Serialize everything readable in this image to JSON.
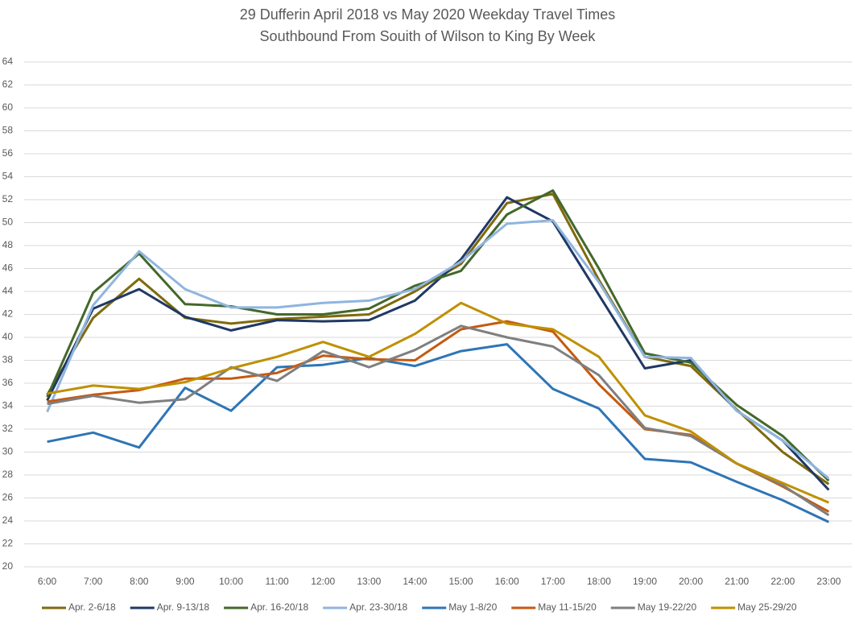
{
  "chart_data": {
    "type": "line",
    "title": "29 Dufferin April 2018 vs May 2020 Weekday Travel Times",
    "subtitle": "Southbound From Souith of Wilson to King By Week",
    "categories": [
      "6:00",
      "7:00",
      "8:00",
      "9:00",
      "10:00",
      "11:00",
      "12:00",
      "13:00",
      "14:00",
      "15:00",
      "16:00",
      "17:00",
      "18:00",
      "19:00",
      "20:00",
      "21:00",
      "22:00",
      "23:00"
    ],
    "ylim": [
      20,
      64
    ],
    "yticks": [
      20,
      22,
      24,
      26,
      28,
      30,
      32,
      34,
      36,
      38,
      40,
      42,
      44,
      46,
      48,
      50,
      52,
      54,
      56,
      58,
      60,
      62,
      64
    ],
    "grid": true,
    "legend": "bottom",
    "series": [
      {
        "name": "Apr. 2-6/18",
        "color": "#7f6a0c",
        "values": [
          35.0,
          41.7,
          45.1,
          41.7,
          41.2,
          41.6,
          41.8,
          42.0,
          44.0,
          46.4,
          51.7,
          52.5,
          45.0,
          38.3,
          37.5,
          33.7,
          30.0,
          27.2
        ]
      },
      {
        "name": "Apr. 9-13/18",
        "color": "#203864",
        "values": [
          34.5,
          42.5,
          44.2,
          41.8,
          40.6,
          41.5,
          41.4,
          41.5,
          43.2,
          46.8,
          52.2,
          50.1,
          43.7,
          37.3,
          38.0,
          33.6,
          31.0,
          26.7
        ]
      },
      {
        "name": "Apr. 16-20/18",
        "color": "#43682b",
        "values": [
          34.8,
          43.9,
          47.3,
          42.9,
          42.7,
          42.0,
          42.0,
          42.5,
          44.5,
          45.8,
          50.7,
          52.8,
          46.0,
          38.6,
          37.8,
          34.1,
          31.4,
          27.5
        ]
      },
      {
        "name": "Apr. 23-30/18",
        "color": "#8fb5e0",
        "values": [
          33.5,
          42.8,
          47.5,
          44.2,
          42.6,
          42.6,
          43.0,
          43.2,
          44.2,
          46.6,
          49.9,
          50.2,
          44.8,
          38.3,
          38.2,
          33.6,
          31.0,
          27.7
        ]
      },
      {
        "name": "May 1-8/20",
        "color": "#2e75b6",
        "values": [
          30.9,
          31.7,
          30.4,
          35.6,
          33.6,
          37.4,
          37.6,
          38.2,
          37.5,
          38.8,
          39.4,
          35.5,
          33.8,
          29.4,
          29.1,
          27.4,
          25.8,
          23.9
        ]
      },
      {
        "name": "May 11-15/20",
        "color": "#c55a11",
        "values": [
          34.4,
          35.0,
          35.4,
          36.4,
          36.4,
          36.9,
          38.4,
          38.1,
          38.0,
          40.7,
          41.4,
          40.5,
          35.9,
          32.0,
          31.5,
          29.0,
          27.0,
          24.8
        ]
      },
      {
        "name": "May 19-22/20",
        "color": "#7f7f7f",
        "values": [
          34.2,
          34.9,
          34.3,
          34.6,
          37.4,
          36.2,
          38.8,
          37.4,
          38.9,
          41.0,
          40.0,
          39.2,
          36.7,
          32.1,
          31.4,
          29.0,
          27.1,
          24.5
        ]
      },
      {
        "name": "May 25-29/20",
        "color": "#bf9000",
        "values": [
          35.1,
          35.8,
          35.5,
          36.1,
          37.3,
          38.3,
          39.6,
          38.3,
          40.3,
          43.0,
          41.2,
          40.7,
          38.3,
          33.2,
          31.8,
          29.0,
          27.3,
          25.6
        ]
      }
    ]
  }
}
